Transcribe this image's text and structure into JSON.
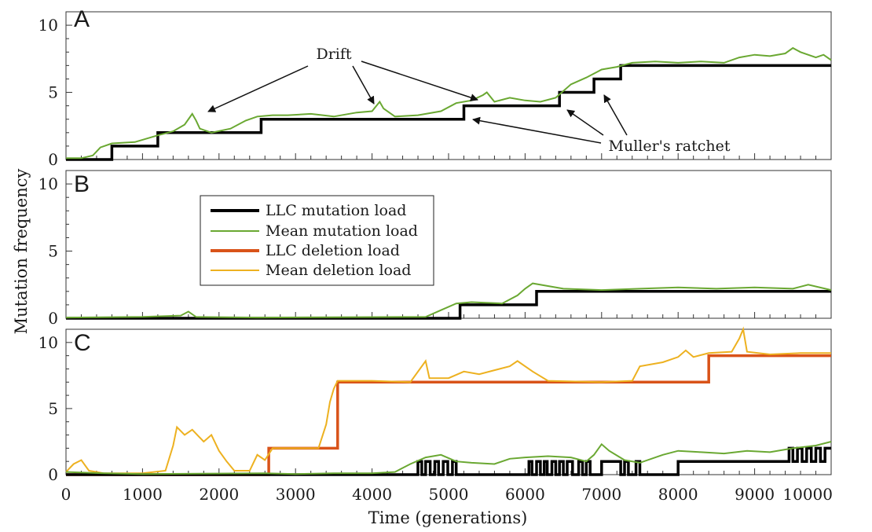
{
  "figure": {
    "ylabel": "Mutation frequency",
    "xlabel": "Time (generations)",
    "x_ticks": [
      "0",
      "1000",
      "2000",
      "3000",
      "4000",
      "5000",
      "6000",
      "7000",
      "8000",
      "9000",
      "10000"
    ],
    "colors": {
      "llc_mutation": "#000000",
      "mean_mutation": "#6aa832",
      "llc_deletion": "#d95319",
      "mean_deletion": "#edb120"
    }
  },
  "legend": {
    "items": [
      "LLC mutation load",
      "Mean mutation load",
      "LLC deletion load",
      "Mean deletion load"
    ]
  },
  "annotations": {
    "drift": "Drift",
    "ratchet": "Muller's ratchet"
  },
  "chart_data": [
    {
      "type": "line",
      "panel": "A",
      "ylabel": "Mutation frequency",
      "xlabel": "Time (generations)",
      "xlim": [
        0,
        10000
      ],
      "ylim": [
        0,
        11
      ],
      "y_ticks": [
        "0",
        "5",
        "10"
      ],
      "series": [
        {
          "name": "LLC mutation load",
          "step": true,
          "points": [
            [
              0,
              0
            ],
            [
              600,
              1
            ],
            [
              1200,
              2
            ],
            [
              2550,
              3
            ],
            [
              5200,
              4
            ],
            [
              6450,
              5
            ],
            [
              6900,
              6
            ],
            [
              7250,
              7
            ],
            [
              10000,
              7
            ]
          ]
        },
        {
          "name": "Mean mutation load",
          "points": [
            [
              0,
              0.1
            ],
            [
              200,
              0.1
            ],
            [
              350,
              0.3
            ],
            [
              450,
              0.9
            ],
            [
              600,
              1.2
            ],
            [
              900,
              1.3
            ],
            [
              1200,
              1.8
            ],
            [
              1400,
              2.1
            ],
            [
              1550,
              2.6
            ],
            [
              1650,
              3.4
            ],
            [
              1700,
              2.9
            ],
            [
              1750,
              2.3
            ],
            [
              1900,
              2.0
            ],
            [
              2150,
              2.3
            ],
            [
              2350,
              2.9
            ],
            [
              2500,
              3.2
            ],
            [
              2700,
              3.3
            ],
            [
              2900,
              3.3
            ],
            [
              3200,
              3.4
            ],
            [
              3500,
              3.2
            ],
            [
              3800,
              3.5
            ],
            [
              4000,
              3.6
            ],
            [
              4100,
              4.3
            ],
            [
              4150,
              3.8
            ],
            [
              4300,
              3.2
            ],
            [
              4600,
              3.3
            ],
            [
              4900,
              3.6
            ],
            [
              5100,
              4.2
            ],
            [
              5300,
              4.4
            ],
            [
              5450,
              4.8
            ],
            [
              5500,
              5.0
            ],
            [
              5600,
              4.3
            ],
            [
              5800,
              4.6
            ],
            [
              6000,
              4.4
            ],
            [
              6200,
              4.3
            ],
            [
              6400,
              4.6
            ],
            [
              6600,
              5.6
            ],
            [
              6800,
              6.1
            ],
            [
              7000,
              6.7
            ],
            [
              7200,
              6.9
            ],
            [
              7400,
              7.2
            ],
            [
              7700,
              7.3
            ],
            [
              8000,
              7.2
            ],
            [
              8300,
              7.3
            ],
            [
              8600,
              7.2
            ],
            [
              8800,
              7.6
            ],
            [
              9000,
              7.8
            ],
            [
              9200,
              7.7
            ],
            [
              9400,
              7.9
            ],
            [
              9500,
              8.3
            ],
            [
              9600,
              8.0
            ],
            [
              9800,
              7.6
            ],
            [
              9900,
              7.8
            ],
            [
              10000,
              7.4
            ]
          ]
        }
      ]
    },
    {
      "type": "line",
      "panel": "B",
      "ylabel": "Mutation frequency",
      "xlabel": "Time (generations)",
      "xlim": [
        0,
        10000
      ],
      "ylim": [
        0,
        11
      ],
      "y_ticks": [
        "0",
        "5",
        "10"
      ],
      "series": [
        {
          "name": "LLC mutation load",
          "step": true,
          "points": [
            [
              0,
              0
            ],
            [
              5150,
              1
            ],
            [
              6150,
              2
            ],
            [
              10000,
              2
            ]
          ]
        },
        {
          "name": "Mean mutation load",
          "points": [
            [
              0,
              0.05
            ],
            [
              1000,
              0.1
            ],
            [
              1500,
              0.2
            ],
            [
              1600,
              0.5
            ],
            [
              1700,
              0.1
            ],
            [
              2500,
              0.05
            ],
            [
              4700,
              0.1
            ],
            [
              4900,
              0.6
            ],
            [
              5100,
              1.1
            ],
            [
              5300,
              1.2
            ],
            [
              5700,
              1.1
            ],
            [
              5900,
              1.7
            ],
            [
              6000,
              2.2
            ],
            [
              6100,
              2.6
            ],
            [
              6300,
              2.4
            ],
            [
              6500,
              2.2
            ],
            [
              7000,
              2.1
            ],
            [
              7500,
              2.2
            ],
            [
              8000,
              2.3
            ],
            [
              8500,
              2.2
            ],
            [
              9000,
              2.3
            ],
            [
              9500,
              2.2
            ],
            [
              9700,
              2.5
            ],
            [
              10000,
              2.1
            ]
          ]
        }
      ]
    },
    {
      "type": "line",
      "panel": "C",
      "ylabel": "Mutation frequency",
      "xlabel": "Time (generations)",
      "xlim": [
        0,
        10000
      ],
      "ylim": [
        0,
        11
      ],
      "y_ticks": [
        "0",
        "5",
        "10"
      ],
      "series": [
        {
          "name": "LLC deletion load",
          "step": true,
          "points": [
            [
              0,
              0
            ],
            [
              2650,
              2
            ],
            [
              3550,
              7
            ],
            [
              8400,
              9
            ],
            [
              10000,
              9
            ]
          ]
        },
        {
          "name": "Mean deletion load",
          "points": [
            [
              0,
              0.2
            ],
            [
              100,
              0.8
            ],
            [
              200,
              1.1
            ],
            [
              300,
              0.3
            ],
            [
              500,
              0.1
            ],
            [
              1000,
              0.1
            ],
            [
              1300,
              0.3
            ],
            [
              1400,
              2.2
            ],
            [
              1450,
              3.6
            ],
            [
              1550,
              3.0
            ],
            [
              1650,
              3.4
            ],
            [
              1800,
              2.5
            ],
            [
              1900,
              3.0
            ],
            [
              2000,
              1.8
            ],
            [
              2100,
              1.0
            ],
            [
              2200,
              0.3
            ],
            [
              2400,
              0.3
            ],
            [
              2500,
              1.5
            ],
            [
              2600,
              1.1
            ],
            [
              2700,
              2.0
            ],
            [
              3000,
              2.0
            ],
            [
              3300,
              2.0
            ],
            [
              3400,
              3.8
            ],
            [
              3450,
              5.5
            ],
            [
              3500,
              6.5
            ],
            [
              3550,
              7.1
            ],
            [
              4000,
              7.1
            ],
            [
              4500,
              7.0
            ],
            [
              4700,
              8.6
            ],
            [
              4750,
              7.3
            ],
            [
              5000,
              7.3
            ],
            [
              5200,
              7.8
            ],
            [
              5400,
              7.6
            ],
            [
              5600,
              7.9
            ],
            [
              5800,
              8.2
            ],
            [
              5900,
              8.6
            ],
            [
              6100,
              7.8
            ],
            [
              6300,
              7.1
            ],
            [
              7000,
              7.0
            ],
            [
              7400,
              7.1
            ],
            [
              7500,
              8.2
            ],
            [
              7800,
              8.5
            ],
            [
              8000,
              8.9
            ],
            [
              8100,
              9.4
            ],
            [
              8200,
              8.9
            ],
            [
              8400,
              9.2
            ],
            [
              8700,
              9.3
            ],
            [
              8800,
              10.3
            ],
            [
              8850,
              11.0
            ],
            [
              8900,
              9.3
            ],
            [
              9200,
              9.1
            ],
            [
              9600,
              9.2
            ],
            [
              10000,
              9.2
            ]
          ]
        },
        {
          "name": "LLC mutation load",
          "step": true,
          "points": [
            [
              0,
              0
            ],
            [
              4550,
              0
            ],
            [
              4600,
              1
            ],
            [
              4650,
              0
            ],
            [
              4700,
              1
            ],
            [
              4760,
              0
            ],
            [
              4820,
              1
            ],
            [
              4870,
              0
            ],
            [
              4930,
              1
            ],
            [
              4990,
              0
            ],
            [
              5050,
              1
            ],
            [
              5100,
              0
            ],
            [
              6000,
              0
            ],
            [
              6050,
              1
            ],
            [
              6090,
              0
            ],
            [
              6150,
              1
            ],
            [
              6200,
              0
            ],
            [
              6250,
              1
            ],
            [
              6290,
              0
            ],
            [
              6350,
              1
            ],
            [
              6400,
              0
            ],
            [
              6450,
              1
            ],
            [
              6500,
              0
            ],
            [
              6550,
              1
            ],
            [
              6620,
              0
            ],
            [
              6700,
              1
            ],
            [
              6750,
              0
            ],
            [
              6800,
              1
            ],
            [
              6850,
              0
            ],
            [
              7000,
              1
            ],
            [
              7250,
              0
            ],
            [
              7300,
              1
            ],
            [
              7350,
              0
            ],
            [
              7450,
              1
            ],
            [
              7500,
              0
            ],
            [
              8000,
              1
            ],
            [
              8550,
              1
            ],
            [
              9400,
              1
            ],
            [
              9450,
              2
            ],
            [
              9500,
              1
            ],
            [
              9560,
              2
            ],
            [
              9620,
              1
            ],
            [
              9680,
              2
            ],
            [
              9740,
              1
            ],
            [
              9800,
              2
            ],
            [
              9860,
              1
            ],
            [
              9920,
              2
            ],
            [
              10000,
              2
            ]
          ]
        },
        {
          "name": "Mean mutation load",
          "points": [
            [
              0,
              0.2
            ],
            [
              500,
              0.1
            ],
            [
              1000,
              0.05
            ],
            [
              2600,
              0.1
            ],
            [
              3000,
              0.05
            ],
            [
              3500,
              0.1
            ],
            [
              4000,
              0.1
            ],
            [
              4300,
              0.2
            ],
            [
              4500,
              0.8
            ],
            [
              4700,
              1.3
            ],
            [
              4900,
              1.5
            ],
            [
              5100,
              1.0
            ],
            [
              5300,
              0.9
            ],
            [
              5600,
              0.8
            ],
            [
              5800,
              1.2
            ],
            [
              6000,
              1.3
            ],
            [
              6300,
              1.4
            ],
            [
              6600,
              1.3
            ],
            [
              6800,
              1.0
            ],
            [
              6900,
              1.5
            ],
            [
              7000,
              2.3
            ],
            [
              7100,
              1.8
            ],
            [
              7300,
              1.1
            ],
            [
              7500,
              0.9
            ],
            [
              7800,
              1.5
            ],
            [
              8000,
              1.8
            ],
            [
              8300,
              1.7
            ],
            [
              8600,
              1.6
            ],
            [
              8900,
              1.8
            ],
            [
              9200,
              1.7
            ],
            [
              9500,
              2.0
            ],
            [
              9800,
              2.2
            ],
            [
              10000,
              2.5
            ]
          ]
        }
      ]
    }
  ]
}
